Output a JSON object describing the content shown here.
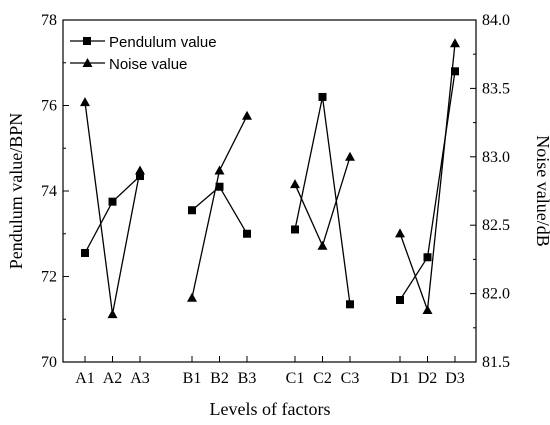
{
  "chart_data": {
    "type": "line",
    "xlabel": "Levels of factors",
    "ylabel_left": "Pendulum value/BPN",
    "ylabel_right": "Noise value/dB",
    "y_left_range": [
      70,
      78
    ],
    "y_left_ticks": [
      70,
      72,
      74,
      76,
      78
    ],
    "y_right_range": [
      81.5,
      84.0
    ],
    "y_right_ticks": [
      "81.5",
      "82.0",
      "82.5",
      "83.0",
      "83.5",
      "84.0"
    ],
    "grid": false,
    "legend": "top-left",
    "groups": [
      {
        "categories": [
          "A1",
          "A2",
          "A3"
        ]
      },
      {
        "categories": [
          "B1",
          "B2",
          "B3"
        ]
      },
      {
        "categories": [
          "C1",
          "C2",
          "C3"
        ]
      },
      {
        "categories": [
          "D1",
          "D2",
          "D3"
        ]
      }
    ],
    "series": [
      {
        "name": "Pendulum value",
        "axis": "left",
        "marker": "square",
        "values": [
          [
            72.55,
            73.75,
            74.35
          ],
          [
            73.55,
            74.1,
            73.0
          ],
          [
            73.1,
            76.2,
            71.35
          ],
          [
            71.45,
            72.45,
            76.8
          ]
        ]
      },
      {
        "name": "Noise value",
        "axis": "right",
        "marker": "triangle",
        "values": [
          [
            83.4,
            81.85,
            82.9
          ],
          [
            81.97,
            82.9,
            83.3
          ],
          [
            82.8,
            82.35,
            83.0
          ],
          [
            82.44,
            81.88,
            83.83
          ]
        ]
      }
    ]
  }
}
